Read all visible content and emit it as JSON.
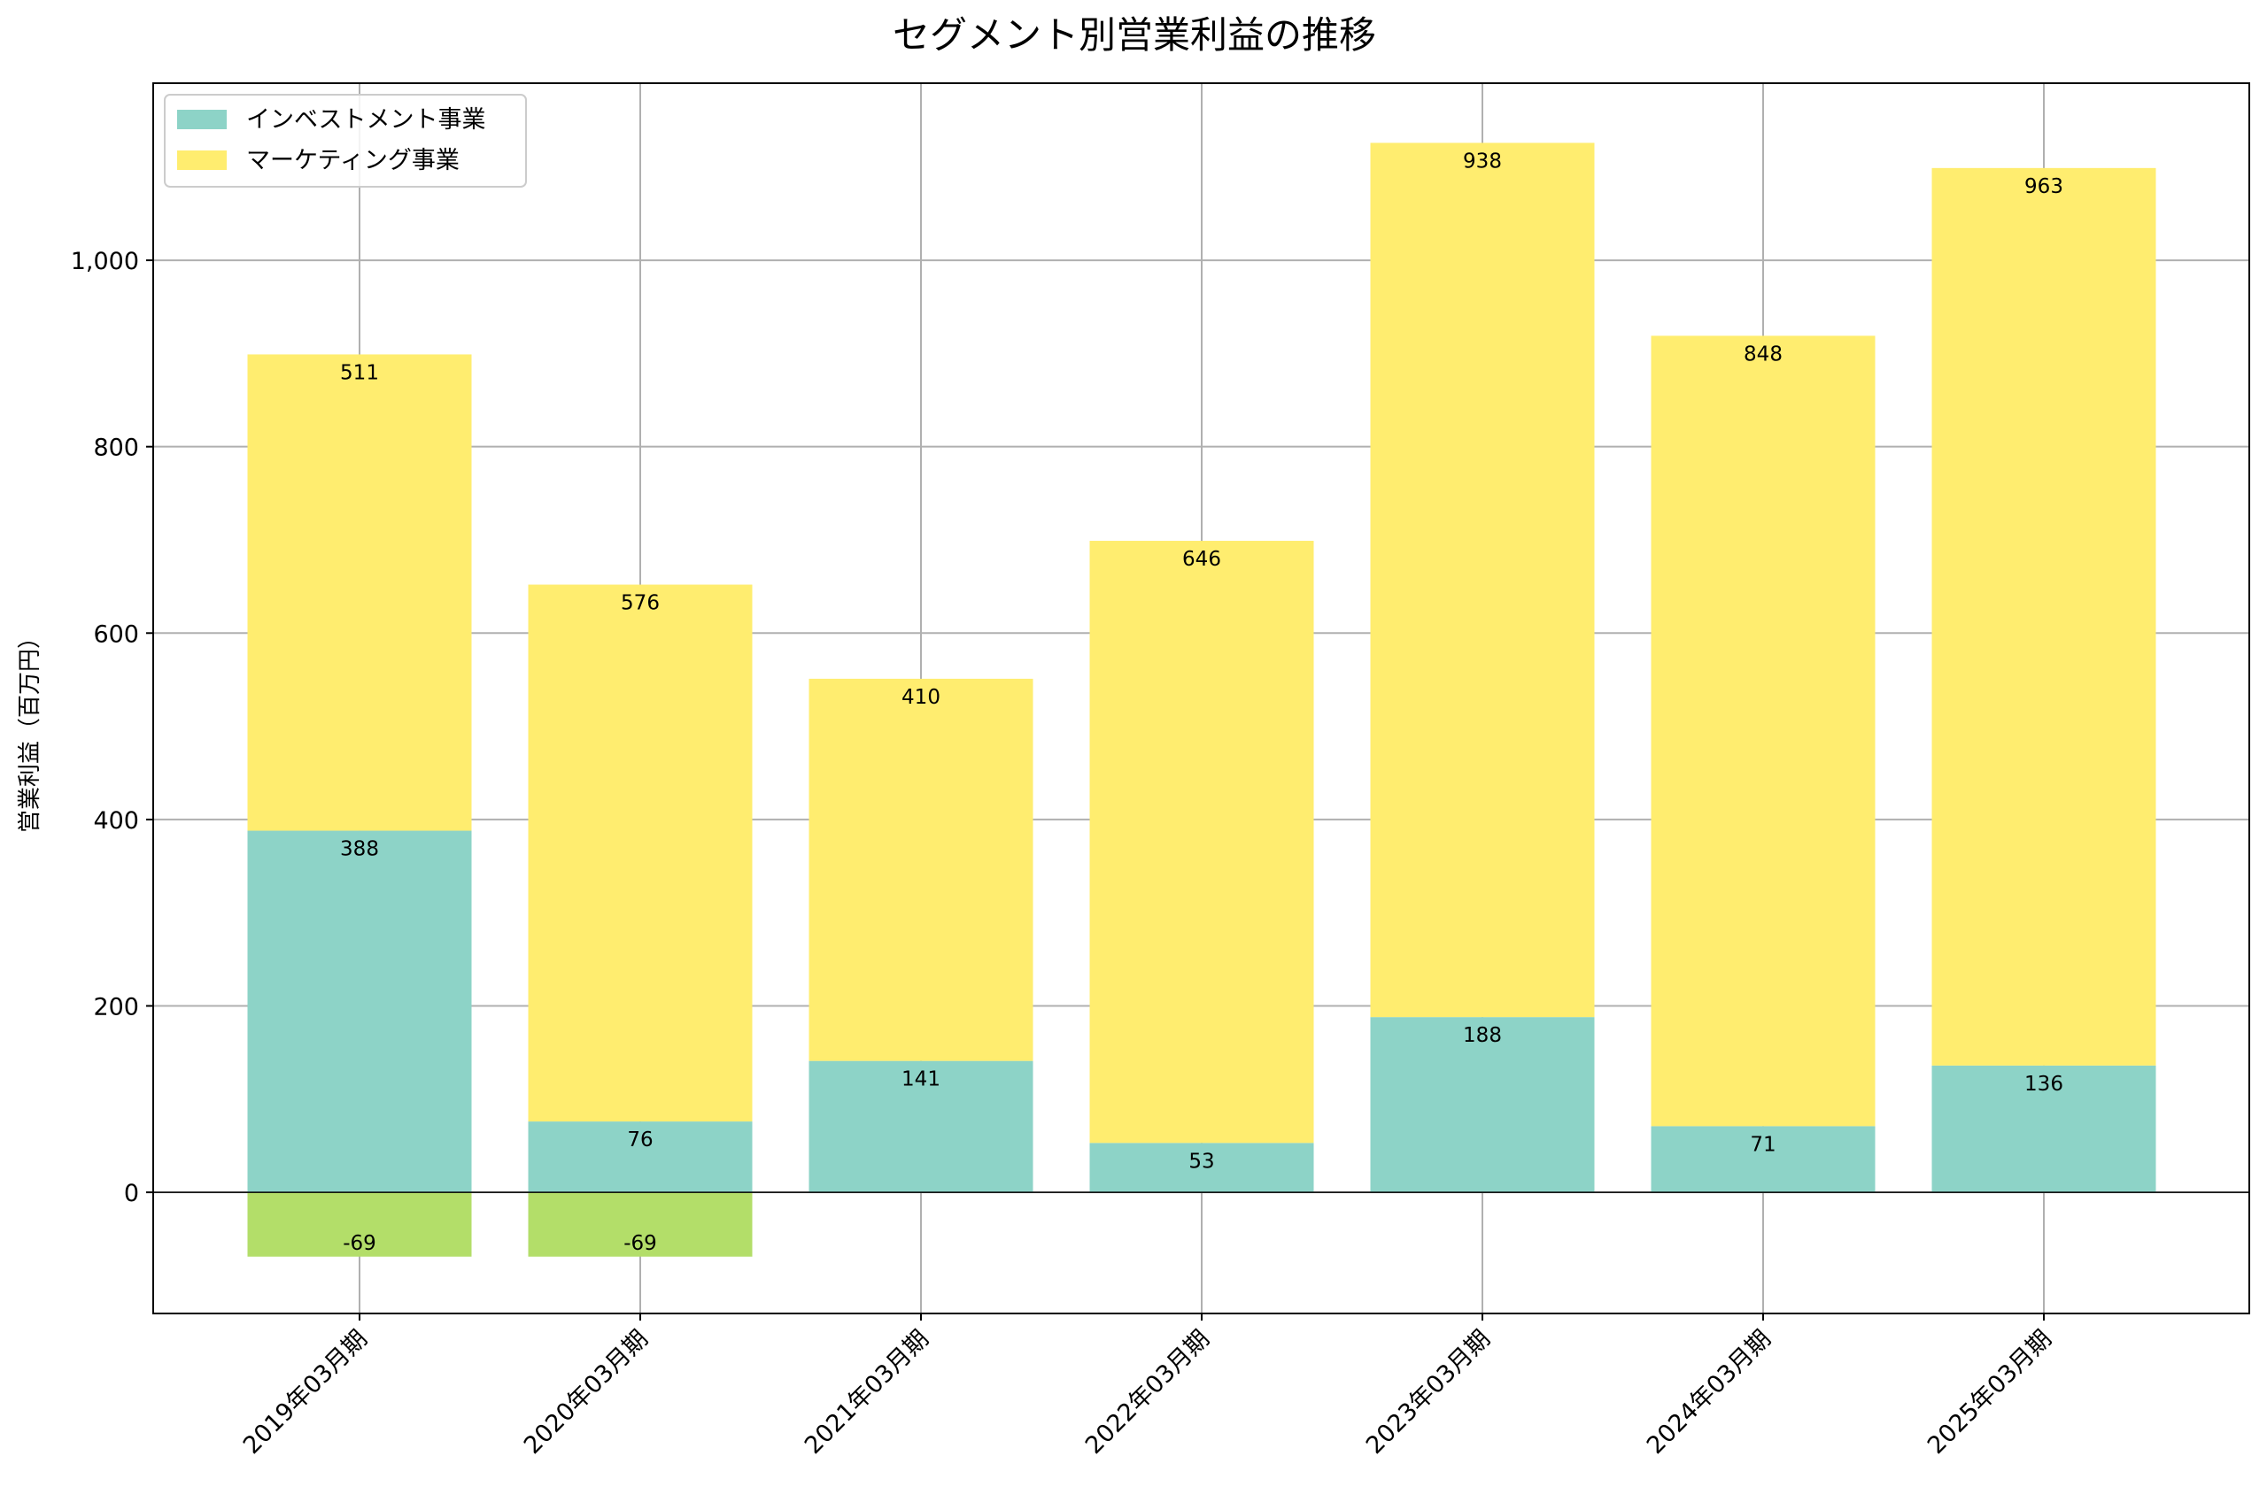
{
  "chart_data": {
    "type": "bar",
    "stacked": true,
    "title": "セグメント別営業利益の推移",
    "xlabel": "",
    "ylabel": "営業利益（百万円）",
    "ylim": [
      -130,
      1190
    ],
    "yticks": [
      0,
      200,
      400,
      600,
      800,
      1000
    ],
    "ytick_labels": [
      "0",
      "200",
      "400",
      "600",
      "800",
      "1,000"
    ],
    "grid": true,
    "legend_position": "top-left",
    "categories": [
      "2019年03月期",
      "2020年03月期",
      "2021年03月期",
      "2022年03月期",
      "2023年03月期",
      "2024年03月期",
      "2025年03月期"
    ],
    "series": [
      {
        "name": "インベストメント事業",
        "color": "#8dd3c7",
        "values": [
          388,
          76,
          141,
          53,
          188,
          71,
          136
        ],
        "in_legend": true
      },
      {
        "name": "マーケティング事業",
        "color": "#ffed6f",
        "values": [
          511,
          576,
          410,
          646,
          938,
          848,
          963
        ],
        "in_legend": true
      },
      {
        "name": "",
        "color": "#b3de69",
        "values": [
          -69,
          -69,
          null,
          null,
          null,
          null,
          null
        ],
        "in_legend": false
      }
    ]
  }
}
